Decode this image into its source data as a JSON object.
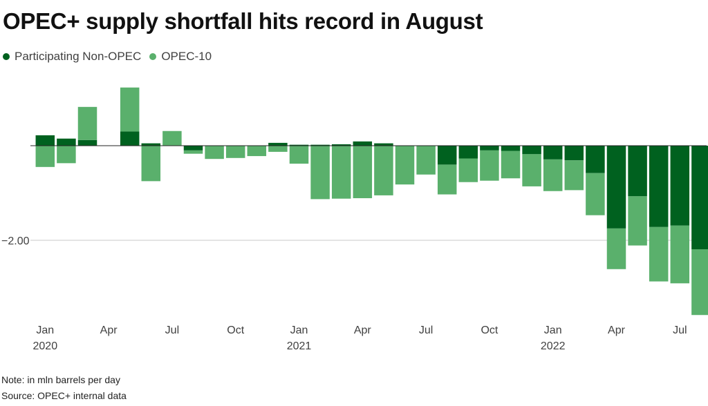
{
  "title": "OPEC+ supply shortfall hits record in August",
  "legend": [
    {
      "label": "Participating Non-OPEC",
      "color": "#00611f"
    },
    {
      "label": "OPEC-10",
      "color": "#5ab06c"
    }
  ],
  "note": "Note: in mln barrels per day",
  "source": "Source: OPEC+ internal data",
  "chart_data": {
    "type": "bar",
    "stacked": true,
    "ylim": [
      -3.6,
      1.25
    ],
    "yticks": [
      {
        "value": -2.0,
        "label": "−2.00"
      }
    ],
    "grid": true,
    "legend_position": "top-left",
    "x_tick_labels": [
      {
        "index": 0,
        "label": "Jan",
        "year": "2020"
      },
      {
        "index": 3,
        "label": "Apr",
        "year": ""
      },
      {
        "index": 6,
        "label": "Jul",
        "year": ""
      },
      {
        "index": 9,
        "label": "Oct",
        "year": ""
      },
      {
        "index": 12,
        "label": "Jan",
        "year": "2021"
      },
      {
        "index": 15,
        "label": "Apr",
        "year": ""
      },
      {
        "index": 18,
        "label": "Jul",
        "year": ""
      },
      {
        "index": 21,
        "label": "Oct",
        "year": ""
      },
      {
        "index": 24,
        "label": "Jan",
        "year": "2022"
      },
      {
        "index": 27,
        "label": "Apr",
        "year": ""
      },
      {
        "index": 30,
        "label": "Jul",
        "year": ""
      }
    ],
    "categories": [
      "Jan 2020",
      "Feb 2020",
      "Mar 2020",
      "Apr 2020",
      "May 2020",
      "Jun 2020",
      "Jul 2020",
      "Aug 2020",
      "Sep 2020",
      "Oct 2020",
      "Nov 2020",
      "Dec 2020",
      "Jan 2021",
      "Feb 2021",
      "Mar 2021",
      "Apr 2021",
      "May 2021",
      "Jun 2021",
      "Jul 2021",
      "Aug 2021",
      "Sep 2021",
      "Oct 2021",
      "Nov 2021",
      "Dec 2021",
      "Jan 2022",
      "Feb 2022",
      "Mar 2022",
      "Apr 2022",
      "May 2022",
      "Jun 2022",
      "Jul 2022",
      "Aug 2022"
    ],
    "series": [
      {
        "name": "Participating Non-OPEC",
        "color": "#00611f",
        "values": [
          0.22,
          0.15,
          0.12,
          0.0,
          0.3,
          0.05,
          0.0,
          -0.1,
          0.0,
          0.0,
          0.0,
          0.06,
          0.02,
          0.02,
          0.03,
          0.09,
          0.05,
          0.0,
          0.0,
          -0.4,
          -0.27,
          -0.1,
          -0.11,
          -0.18,
          -0.29,
          -0.31,
          -0.58,
          -1.75,
          -1.07,
          -1.72,
          -1.69,
          -2.19
        ]
      },
      {
        "name": "OPEC-10",
        "color": "#5ab06c",
        "values": [
          -0.45,
          -0.37,
          0.7,
          0.0,
          0.93,
          -0.75,
          0.31,
          -0.07,
          -0.28,
          -0.26,
          -0.22,
          -0.13,
          -0.38,
          -1.13,
          -1.12,
          -1.11,
          -1.05,
          -0.82,
          -0.61,
          -0.63,
          -0.5,
          -0.64,
          -0.58,
          -0.68,
          -0.67,
          -0.63,
          -0.89,
          -0.86,
          -1.04,
          -1.15,
          -1.22,
          -1.39
        ]
      }
    ]
  }
}
